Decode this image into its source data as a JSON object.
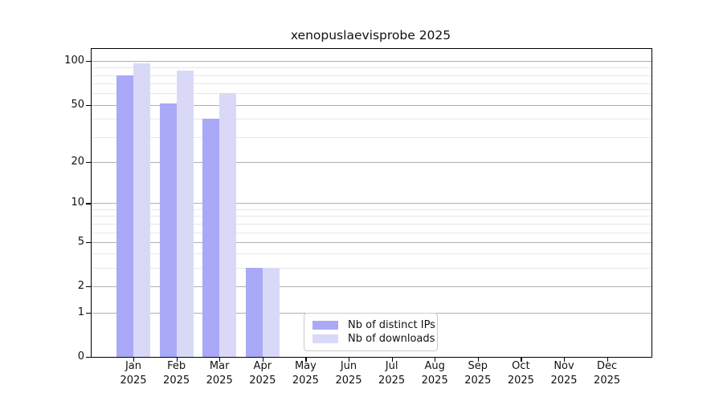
{
  "chart_data": {
    "type": "bar",
    "title": "xenopuslaevisprobe 2025",
    "categories": [
      "Jan",
      "Feb",
      "Mar",
      "Apr",
      "May",
      "Jun",
      "Jul",
      "Aug",
      "Sep",
      "Oct",
      "Nov",
      "Dec"
    ],
    "category_year": "2025",
    "series": [
      {
        "name": "Nb of distinct IPs",
        "color": "#a9a9f7",
        "values": [
          80,
          51,
          40,
          3,
          0,
          0,
          0,
          0,
          0,
          0,
          0,
          0
        ]
      },
      {
        "name": "Nb of downloads",
        "color": "#d9d9f7",
        "values": [
          97,
          86,
          60,
          3,
          0,
          0,
          0,
          0,
          0,
          0,
          0,
          0
        ]
      }
    ],
    "y_axis": {
      "scale": "log1p",
      "major_ticks": [
        0,
        1,
        2,
        5,
        10,
        20,
        50,
        100
      ],
      "minor_gridlines": [
        3,
        4,
        6,
        7,
        8,
        9,
        30,
        40,
        60,
        70,
        80,
        90
      ],
      "max": 121
    },
    "xlabel": "",
    "ylabel": "",
    "grid": "horizontal",
    "legend_position": "inside-bottom-center"
  },
  "colors": {
    "major_grid": "#b0b0b0",
    "minor_grid": "#e7e7e7",
    "axis": "#000000",
    "text": "#111111",
    "background": "#ffffff"
  }
}
